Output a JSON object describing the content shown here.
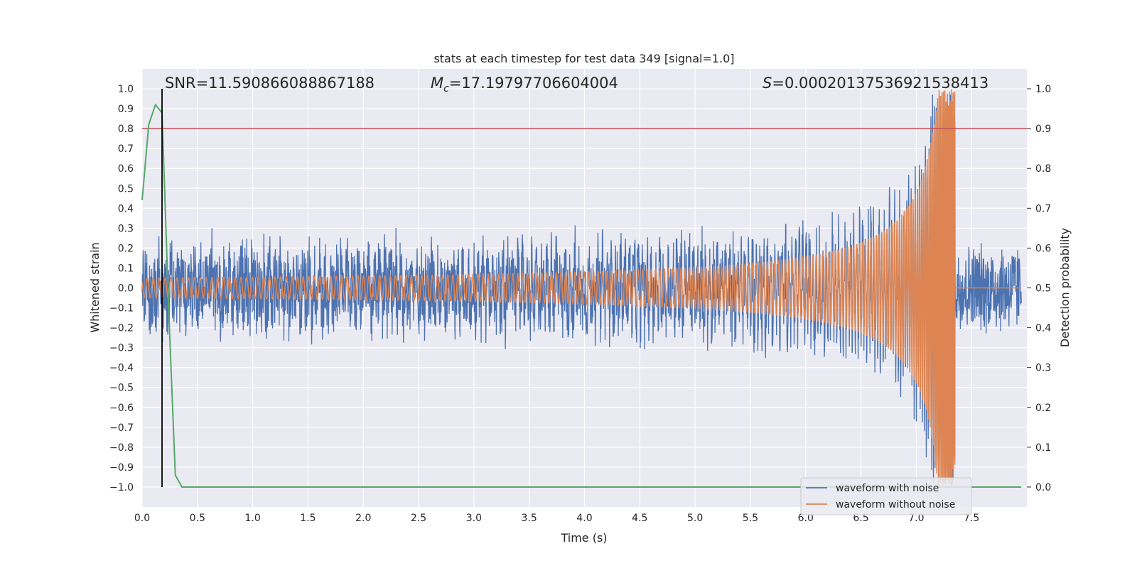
{
  "chart_data": {
    "type": "line",
    "title": "stats at each timestep for test data 349 [signal=1.0]",
    "xlabel": "Time (s)",
    "ylabel_left": "Whitened strain",
    "ylabel_right": "Detection probability",
    "xlim": [
      0.0,
      8.0
    ],
    "ylim_left": [
      -1.1,
      1.1
    ],
    "ylim_right": [
      -0.05,
      1.05
    ],
    "x_ticks": [
      "0.0",
      "0.5",
      "1.0",
      "1.5",
      "2.0",
      "2.5",
      "3.0",
      "3.5",
      "4.0",
      "4.5",
      "5.0",
      "5.5",
      "6.0",
      "6.5",
      "7.0",
      "7.5"
    ],
    "y_left_ticks": [
      "1.0",
      "0.9",
      "0.8",
      "0.7",
      "0.6",
      "0.5",
      "0.4",
      "0.3",
      "0.2",
      "0.1",
      "0.0",
      "−0.1",
      "−0.2",
      "−0.3",
      "−0.4",
      "−0.5",
      "−0.6",
      "−0.7",
      "−0.8",
      "−0.9",
      "−1.0"
    ],
    "y_right_ticks": [
      "1.0",
      "0.9",
      "0.8",
      "0.7",
      "0.6",
      "0.5",
      "0.4",
      "0.3",
      "0.2",
      "0.1",
      "0.0"
    ],
    "grid": true,
    "annotations": {
      "snr": "SNR=11.590866088867188",
      "mc_symbol": "M",
      "mc_sub": "c",
      "mc_value": "=17.19797706604004",
      "s_symbol": "S",
      "s_value": "=0.00020137536921538413"
    },
    "threshold_line": {
      "axis": "right",
      "value": 0.9,
      "color": "#c44e52"
    },
    "vertical_marker": {
      "x": 0.18,
      "color": "#000000"
    },
    "merger_time": 7.35,
    "series": [
      {
        "name": "waveform with noise",
        "axis": "left",
        "color": "#4c72b0",
        "description_values": {
          "noise_envelope": 0.25,
          "chirp_peak": 0.96,
          "chirp_trough": -0.95
        }
      },
      {
        "name": "waveform without noise",
        "axis": "left",
        "color": "#dd8452",
        "description_values": {
          "start_amplitude": 0.02,
          "peak": 1.0,
          "trough": -0.98
        }
      },
      {
        "name": "detection probability",
        "axis": "right",
        "color": "#55a868",
        "x": [
          0.0,
          0.06,
          0.12,
          0.18,
          0.24,
          0.3,
          0.36,
          0.42,
          7.95
        ],
        "values": [
          0.72,
          0.91,
          0.96,
          0.94,
          0.45,
          0.03,
          0.0,
          0.0,
          0.0
        ]
      }
    ],
    "legend": {
      "position": "lower-right",
      "entries": [
        {
          "label": "waveform with noise",
          "color": "#4c72b0"
        },
        {
          "label": "waveform without noise",
          "color": "#dd8452"
        }
      ]
    }
  }
}
